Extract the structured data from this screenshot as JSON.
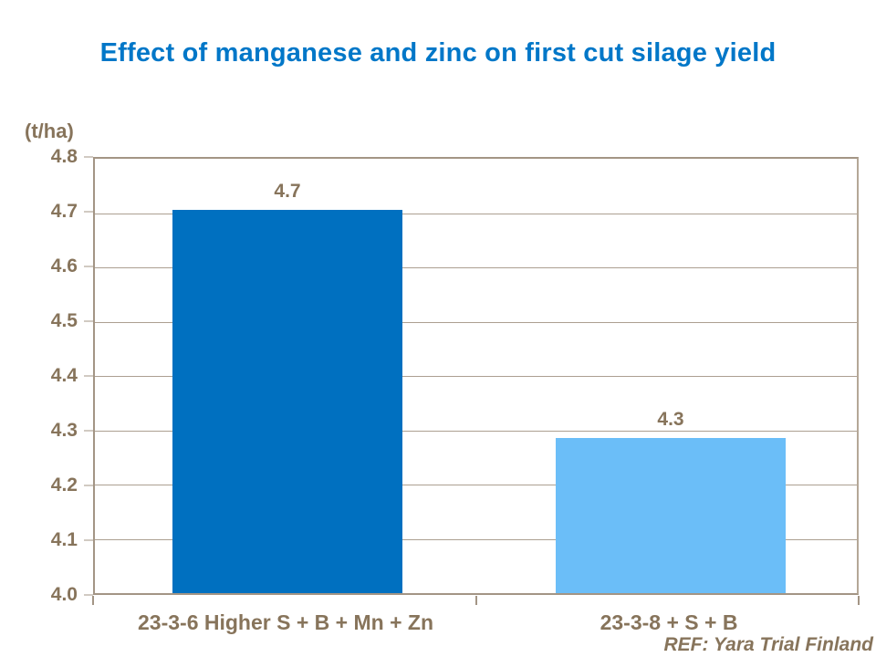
{
  "chart_data": {
    "type": "bar",
    "title": "Effect of manganese and zinc on first cut silage yield",
    "ylabel": "(t/ha)",
    "xlabel": "",
    "categories": [
      "23-3-6 Higher S + B + Mn + Zn",
      "23-3-8 + S + B"
    ],
    "values": [
      4.7,
      4.3
    ],
    "plotted_values": [
      4.7,
      4.283
    ],
    "data_labels": [
      "4.7",
      "4.3"
    ],
    "ylim": [
      4.0,
      4.8
    ],
    "ytick_step": 0.1,
    "ytick_labels": [
      "4.8",
      "4.7",
      "4.6",
      "4.5",
      "4.4",
      "4.3",
      "4.2",
      "4.1",
      "4.0"
    ],
    "grid": true,
    "legend": false,
    "bar_colors": [
      "#0070C0",
      "#6BBEF8"
    ],
    "title_color": "#0077C8",
    "text_color": "#87745B",
    "grid_color": "#AC9F91"
  },
  "footer": {
    "ref": "REF: Yara Trial Finland"
  }
}
